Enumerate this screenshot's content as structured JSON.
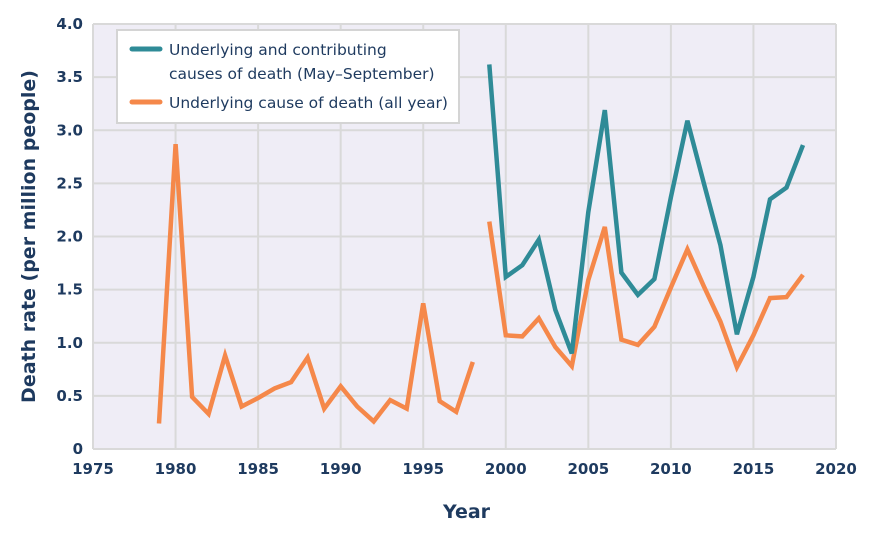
{
  "chart_data": {
    "type": "line",
    "title": "",
    "xlabel": "Year",
    "ylabel": "Death rate (per million people)",
    "xlim": [
      1975,
      2020
    ],
    "ylim": [
      0,
      4.0
    ],
    "xticks": [
      "1975",
      "1980",
      "1985",
      "1990",
      "1995",
      "2000",
      "2005",
      "2010",
      "2015",
      "2020"
    ],
    "yticks": [
      "0",
      "0.5",
      "1.0",
      "1.5",
      "2.0",
      "2.5",
      "3.0",
      "3.5",
      "4.0"
    ],
    "grid": true,
    "legend_position": "top-left",
    "colors": {
      "teal": "#2f8b97",
      "orange": "#f5884a",
      "text": "#1e3a5f",
      "plot_bg": "#efedf6",
      "grid": "#d9d9d9"
    },
    "series": [
      {
        "name": "Underlying and contributing causes of death (May–September)",
        "legend_lines": [
          "Underlying and contributing",
          "causes of death (May–September)"
        ],
        "color": "#2f8b97",
        "x": [
          1999,
          2000,
          2001,
          2002,
          2003,
          2004,
          2005,
          2006,
          2007,
          2008,
          2009,
          2010,
          2011,
          2012,
          2013,
          2014,
          2015,
          2016,
          2017,
          2018
        ],
        "values": [
          3.62,
          1.62,
          1.73,
          1.97,
          1.31,
          0.9,
          2.23,
          3.19,
          1.66,
          1.45,
          1.6,
          2.37,
          3.09,
          2.5,
          1.92,
          1.08,
          1.62,
          2.35,
          2.46,
          2.86
        ]
      },
      {
        "name": "Underlying cause of death (all year)",
        "legend_lines": [
          "Underlying cause of death (all year)"
        ],
        "color": "#f5884a",
        "segments": [
          {
            "x": [
              1979,
              1980,
              1981,
              1982,
              1983,
              1984,
              1985,
              1986,
              1987,
              1988,
              1989,
              1990,
              1991,
              1992,
              1993,
              1994,
              1995,
              1996,
              1997,
              1998
            ],
            "values": [
              0.24,
              2.87,
              0.49,
              0.33,
              0.88,
              0.4,
              0.48,
              0.57,
              0.63,
              0.86,
              0.38,
              0.59,
              0.4,
              0.26,
              0.46,
              0.38,
              1.37,
              0.45,
              0.35,
              0.82
            ]
          },
          {
            "x": [
              1999,
              2000,
              2001,
              2002,
              2003,
              2004,
              2005,
              2006,
              2007,
              2008,
              2009,
              2010,
              2011,
              2012,
              2013,
              2014,
              2015,
              2016,
              2017,
              2018
            ],
            "values": [
              2.14,
              1.07,
              1.06,
              1.23,
              0.96,
              0.78,
              1.59,
              2.09,
              1.03,
              0.98,
              1.15,
              1.52,
              1.88,
              1.53,
              1.2,
              0.77,
              1.07,
              1.42,
              1.43,
              1.64
            ]
          }
        ]
      }
    ]
  }
}
